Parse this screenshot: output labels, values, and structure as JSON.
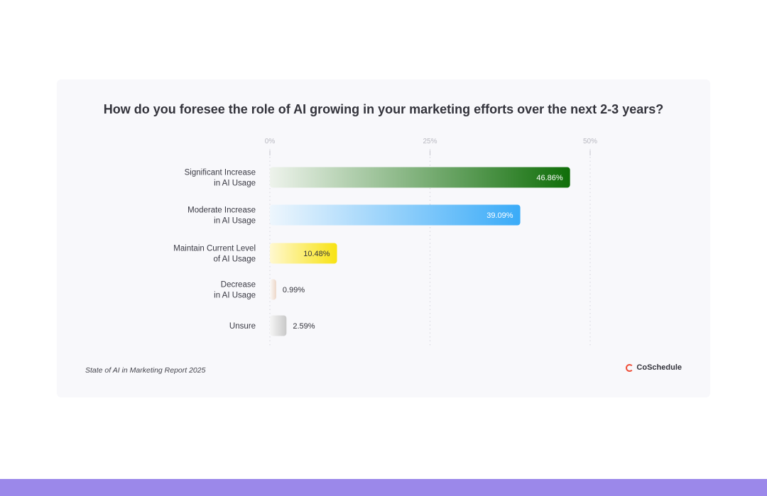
{
  "chart_data": {
    "type": "bar",
    "orientation": "horizontal",
    "title": "How do you foresee the role of AI growing in your marketing efforts over the next 2-3 years?",
    "categories": [
      [
        "Significant Increase",
        "in AI Usage"
      ],
      [
        "Moderate Increase",
        "in AI Usage"
      ],
      [
        "Maintain Current Level",
        "of AI Usage"
      ],
      [
        "Decrease",
        "in AI Usage"
      ],
      [
        "Unsure"
      ]
    ],
    "values": [
      46.86,
      39.09,
      10.48,
      0.99,
      2.59
    ],
    "value_labels": [
      "46.86%",
      "39.09%",
      "10.48%",
      "0.99%",
      "2.59%"
    ],
    "bar_colors": [
      [
        "#eef3ec",
        "#0f6e08"
      ],
      [
        "#eef6fd",
        "#3aabf8"
      ],
      [
        "#fff8d0",
        "#f8e313"
      ],
      [
        "#fbfaf8",
        "#edd7c8"
      ],
      [
        "#f6f6f6",
        "#c8c8c8"
      ]
    ],
    "xticks": [
      0,
      25,
      50
    ],
    "xtick_labels": [
      "0%",
      "25%",
      "50%"
    ],
    "xlim": [
      0,
      50
    ],
    "grid": true
  },
  "source": "State of AI in Marketing Report 2025",
  "brand": "CoSchedule"
}
